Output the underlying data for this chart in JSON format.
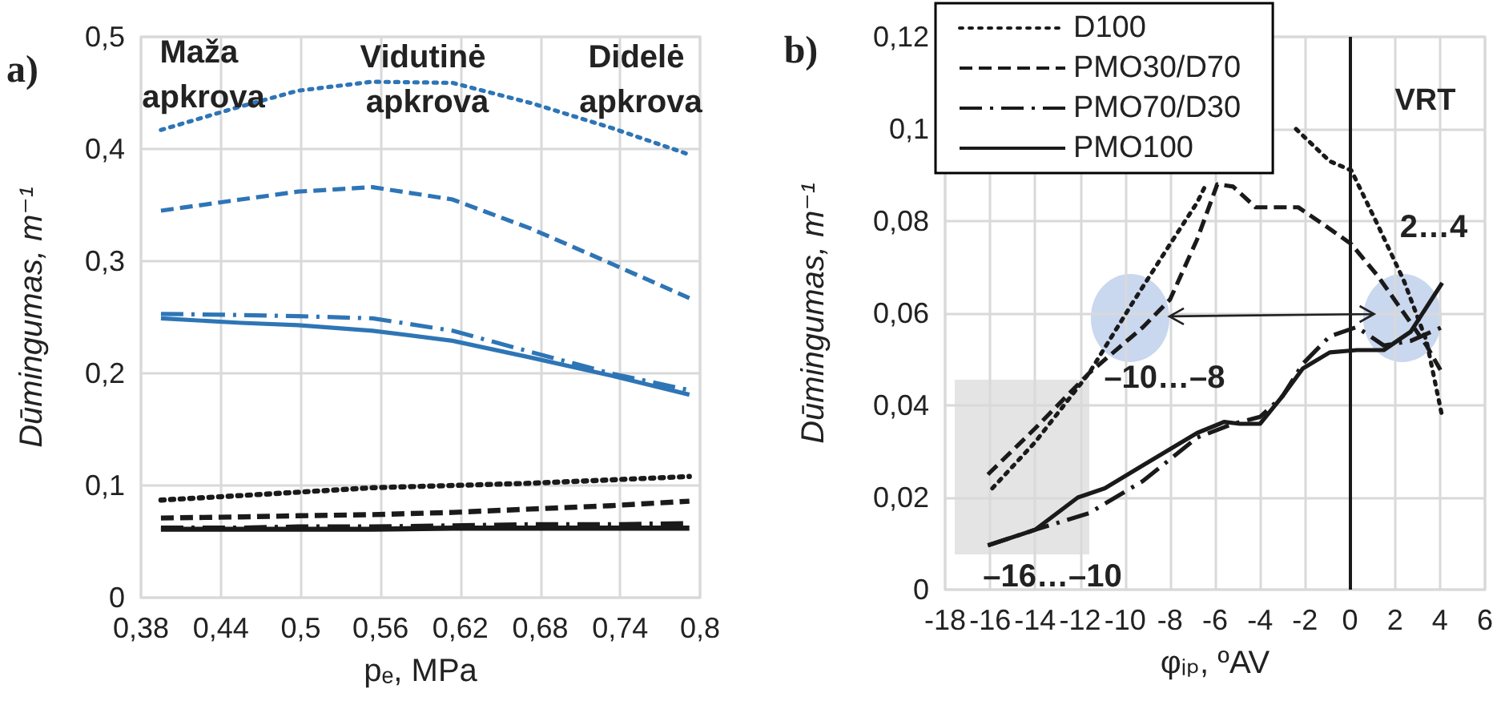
{
  "chart_data": [
    {
      "type": "line",
      "xlabel": "pₑ, MPa",
      "ylabel": "Dūmingumas, m⁻¹",
      "x": [
        0.395,
        0.455,
        0.498,
        0.554,
        0.614,
        0.673,
        0.733,
        0.792
      ],
      "xlim": [
        0.38,
        0.8
      ],
      "xticks": [
        {
          "value": 0.38,
          "label": "0,38"
        },
        {
          "value": 0.44,
          "label": "0,44"
        },
        {
          "value": 0.5,
          "label": "0,5"
        },
        {
          "value": 0.56,
          "label": "0,56"
        },
        {
          "value": 0.62,
          "label": "0,62"
        },
        {
          "value": 0.68,
          "label": "0,68"
        },
        {
          "value": 0.74,
          "label": "0,74"
        },
        {
          "value": 0.8,
          "label": "0,8"
        }
      ],
      "ylim": [
        0,
        0.5
      ],
      "yticks": [
        0,
        {
          "value": 0.1,
          "label": "0,1"
        },
        {
          "value": 0.2,
          "label": "0,2"
        },
        {
          "value": 0.3,
          "label": "0,3"
        },
        {
          "value": 0.4,
          "label": "0,4"
        },
        {
          "value": 0.5,
          "label": "0,5"
        }
      ],
      "grid": true,
      "series": [
        {
          "color": "#2e75b6",
          "line_style": "dotted",
          "values": [
            0.417,
            0.438,
            0.452,
            0.46,
            0.459,
            0.441,
            0.419,
            0.395
          ]
        },
        {
          "color": "#2e75b6",
          "line_style": "dashed",
          "values": [
            0.345,
            0.355,
            0.362,
            0.366,
            0.355,
            0.329,
            0.298,
            0.267
          ]
        },
        {
          "color": "#2e75b6",
          "line_style": "dashdot",
          "values": [
            0.253,
            0.252,
            0.251,
            0.249,
            0.238,
            0.219,
            0.2,
            0.185
          ]
        },
        {
          "color": "#2e75b6",
          "line_style": "solid",
          "values": [
            0.249,
            0.245,
            0.243,
            0.238,
            0.229,
            0.214,
            0.198,
            0.181
          ]
        },
        {
          "color": "#1a1a1a",
          "line_style": "dotted",
          "values": [
            0.087,
            0.091,
            0.094,
            0.098,
            0.1,
            0.102,
            0.105,
            0.108
          ]
        },
        {
          "color": "#1a1a1a",
          "line_style": "dashed",
          "values": [
            0.071,
            0.072,
            0.073,
            0.074,
            0.076,
            0.079,
            0.082,
            0.086
          ]
        },
        {
          "color": "#1a1a1a",
          "line_style": "dashdot",
          "values": [
            0.062,
            0.062,
            0.063,
            0.063,
            0.064,
            0.065,
            0.065,
            0.066
          ]
        },
        {
          "color": "#1a1a1a",
          "line_style": "solid",
          "values": [
            0.061,
            0.061,
            0.061,
            0.061,
            0.062,
            0.062,
            0.062,
            0.062
          ]
        }
      ],
      "annotations": [
        "a)",
        "Maža apkrova",
        "Vidutinė apkrova",
        "Didelė apkrova"
      ]
    },
    {
      "type": "line",
      "xlabel": "φᵢₚ, ºAV",
      "ylabel": "Dūmingumas, m⁻¹",
      "xlim": [
        -18,
        6
      ],
      "xticks": [
        -18,
        -16,
        -14,
        -12,
        -10,
        -8,
        -6,
        -4,
        -2,
        0,
        2,
        4,
        6
      ],
      "ylim": [
        0,
        0.12
      ],
      "yticks": [
        0,
        {
          "value": 0.02,
          "label": "0,02"
        },
        {
          "value": 0.04,
          "label": "0,04"
        },
        {
          "value": 0.06,
          "label": "0,06"
        },
        {
          "value": 0.08,
          "label": "0,08"
        },
        {
          "value": 0.1,
          "label": "0,1"
        },
        {
          "value": 0.12,
          "label": "0,12"
        }
      ],
      "grid": true,
      "legend": "top left",
      "series": [
        {
          "name": "D100",
          "color": "#1a1a1a",
          "line_style": "dotted",
          "x": [
            -15.9,
            -14,
            -11.6,
            -9.7,
            -8,
            -6.8,
            -6.4,
            -4.5,
            -2.4,
            -0.9,
            0.06,
            1.25,
            2.4,
            3.4,
            4.1
          ],
          "values": [
            0.022,
            0.032,
            0.047,
            0.062,
            0.075,
            0.084,
            0.088,
            null,
            0.1,
            0.093,
            0.091,
            0.079,
            0.067,
            0.054,
            0.0375
          ]
        },
        {
          "name": "PMO30/D70",
          "color": "#1a1a1a",
          "line_style": "dashed",
          "x": [
            -16.1,
            -14,
            -11.6,
            -9.2,
            -8,
            -6.8,
            -5.9,
            -5.2,
            -4.2,
            -3.3,
            -2.3,
            -1.1,
            0.06,
            1.25,
            2.4,
            3.4,
            4.1
          ],
          "values": [
            0.025,
            0.035,
            0.047,
            0.057,
            0.063,
            0.076,
            0.088,
            0.0875,
            0.083,
            0.083,
            0.083,
            0.079,
            0.075,
            0.068,
            0.06,
            0.053,
            0.047
          ]
        },
        {
          "name": "PMO70/D30",
          "color": "#1a1a1a",
          "line_style": "dashdot",
          "x": [
            -16.1,
            -14,
            -11.6,
            -9.2,
            -6.8,
            -5.2,
            -4,
            -3,
            -2.1,
            -0.9,
            0.3,
            1.5,
            2.7,
            4.1
          ],
          "values": [
            0.0096,
            0.013,
            0.0166,
            0.0236,
            0.033,
            0.036,
            0.0375,
            0.042,
            0.049,
            0.055,
            0.057,
            0.053,
            0.054,
            0.057
          ]
        },
        {
          "name": "PMO100",
          "color": "#1a1a1a",
          "line_style": "solid",
          "x": [
            -16.1,
            -14,
            -12.1,
            -10.9,
            -9.2,
            -6.8,
            -5.6,
            -4.9,
            -4,
            -3,
            -2.1,
            -0.9,
            0.3,
            1.5,
            2.7,
            4.1
          ],
          "values": [
            0.0096,
            0.013,
            0.02,
            0.022,
            0.027,
            0.034,
            0.0364,
            0.036,
            0.036,
            0.042,
            0.048,
            0.0515,
            0.052,
            0.052,
            0.056,
            0.0666
          ]
        }
      ],
      "ref_lines": [
        {
          "axis": "x",
          "value": 0,
          "label": "VRT",
          "color": "#1a1a1a"
        }
      ],
      "annotations": [
        "b)",
        "2…4",
        "–10…–8",
        "–16…–10"
      ]
    }
  ]
}
